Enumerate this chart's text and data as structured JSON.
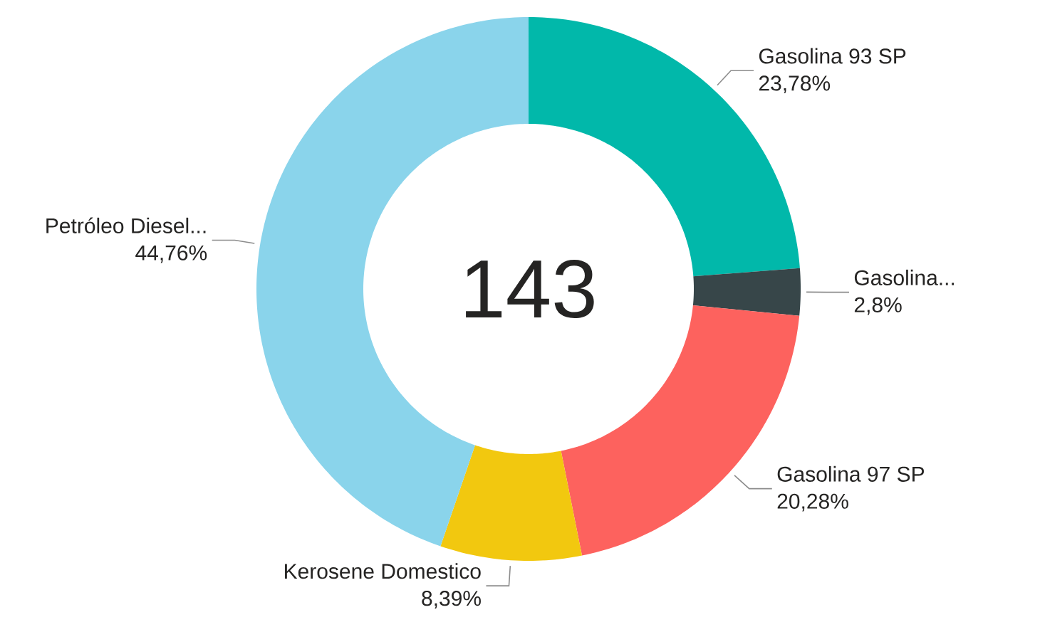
{
  "chart_data": {
    "type": "donut",
    "categories": [
      "Gasolina 93 SP",
      "Gasolina...",
      "Gasolina 97 SP",
      "Kerosene Domestico",
      "Petróleo Diesel..."
    ],
    "values": [
      23.78,
      2.8,
      20.28,
      8.39,
      44.76
    ],
    "colors": [
      "#01b8aa",
      "#374649",
      "#fd625e",
      "#f2c80f",
      "#8ad4eb"
    ],
    "value_labels": [
      "23,78%",
      "2,8%",
      "20,28%",
      "8,39%",
      "44,76%"
    ],
    "annotations": [
      "143"
    ]
  }
}
